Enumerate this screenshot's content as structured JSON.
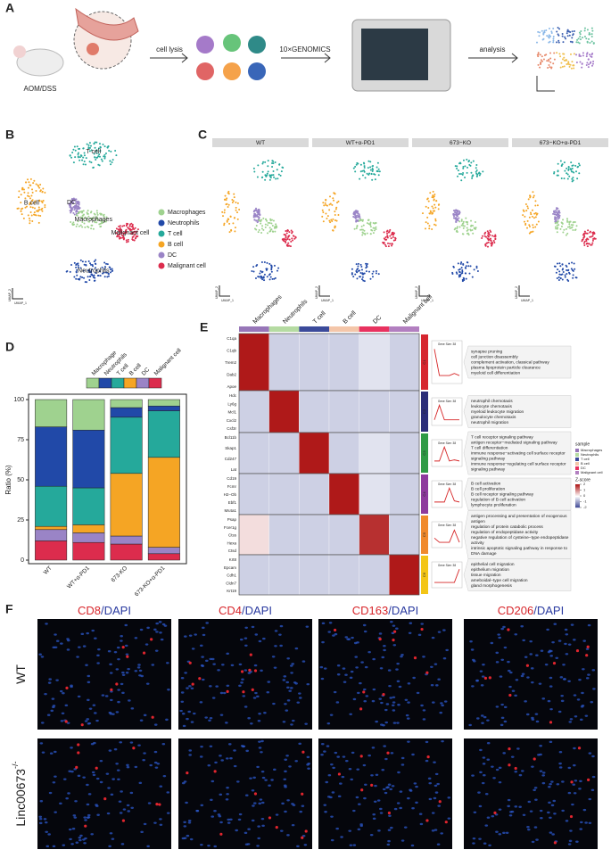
{
  "panel_a": {
    "letter": "A",
    "mouse_label": "AOM/DSS",
    "step1": "cell lysis",
    "step2": "10×GENOMICS",
    "step3": "analysis"
  },
  "panel_b": {
    "letter": "B",
    "cluster_labels": [
      "T cell",
      "B cell",
      "DC",
      "Macrophages",
      "Malignant cell",
      "Neutrophils"
    ],
    "legend": [
      {
        "name": "Macrophages",
        "color": "#9fd28f"
      },
      {
        "name": "Neutrophils",
        "color": "#2149a8"
      },
      {
        "name": "T cell",
        "color": "#25a99b"
      },
      {
        "name": "B cell",
        "color": "#f5a524"
      },
      {
        "name": "DC",
        "color": "#9a84c6"
      },
      {
        "name": "Malignant cell",
        "color": "#dc2c4d"
      }
    ],
    "xlabel": "UMAP_1",
    "ylabel": "UMAP_2"
  },
  "panel_c": {
    "letter": "C",
    "groups": [
      "WT",
      "WT+α-PD1",
      "673−KO",
      "673−KO+α-PD1"
    ],
    "xlabel": "UMAP_1",
    "ylabel": "UMAP_2"
  },
  "chart_data": {
    "type": "bar",
    "stacked": true,
    "letter": "D",
    "ylabel": "Ratio (%)",
    "categories": [
      "WT",
      "WT+α-PD1",
      "673-KO",
      "673-KO+α-PD1"
    ],
    "ylim": [
      0,
      100
    ],
    "yticks": [
      0,
      25,
      50,
      75,
      100
    ],
    "series": [
      {
        "name": "Malignant cell",
        "color": "#dc2c4d",
        "values": [
          12,
          11,
          10,
          4
        ]
      },
      {
        "name": "DC",
        "color": "#9a84c6",
        "values": [
          7,
          6,
          5,
          4
        ]
      },
      {
        "name": "B cell",
        "color": "#f5a524",
        "values": [
          2,
          5,
          39,
          56
        ]
      },
      {
        "name": "T cell",
        "color": "#25a99b",
        "values": [
          25,
          23,
          35,
          29
        ]
      },
      {
        "name": "Neutrophils",
        "color": "#2149a8",
        "values": [
          37,
          36,
          6,
          3
        ]
      },
      {
        "name": "Macrophage",
        "color": "#9fd28f",
        "values": [
          17,
          19,
          5,
          4
        ]
      }
    ]
  },
  "panel_e": {
    "letter": "E",
    "columns": [
      {
        "name": "Macrophages",
        "color": "#9776b8"
      },
      {
        "name": "Neutrophils",
        "color": "#b5dba2"
      },
      {
        "name": "T cell",
        "color": "#3b4a9a"
      },
      {
        "name": "B cell",
        "color": "#f4c6a9"
      },
      {
        "name": "DC",
        "color": "#e8325f"
      },
      {
        "name": "Malignant cell",
        "color": "#b27fc0"
      }
    ],
    "clusters": [
      {
        "id": "C1",
        "color": "#d6262f",
        "gene_size": "Gene Size: 38",
        "genes": [
          "C1qa",
          "C1qb",
          "Trem2",
          "Dab2",
          "Apoe"
        ],
        "means": [
          2,
          -0.5,
          -0.5,
          -0.5,
          -0.3,
          -0.5
        ],
        "terms": [
          "synapse pruning",
          "cell junction disassembly",
          "complement activation, classical pathway",
          "plasma lipoprotein particle clearance",
          "myeloid cell differentiation"
        ]
      },
      {
        "id": "C2",
        "color": "#2b2d78",
        "gene_size": "Gene Size: 38",
        "genes": [
          "Hdc",
          "Ly6g",
          "Mcl1",
          "Cxcl2",
          "Csf3r"
        ],
        "means": [
          -0.5,
          2,
          -0.5,
          -0.5,
          -0.5,
          -0.5
        ],
        "terms": [
          "neutrophil chemotaxis",
          "leukocyte chemotaxis",
          "myeloid leukocyte migration",
          "granulocyte chemotaxis",
          "neutrophil migration"
        ]
      },
      {
        "id": "C3",
        "color": "#2f9a45",
        "gene_size": "Gene Size: 38",
        "genes": [
          "Bcl11b",
          "Skap1",
          "Cd247",
          "Lat"
        ],
        "means": [
          -0.5,
          -0.5,
          2,
          -0.5,
          -0.3,
          -0.5
        ],
        "terms": [
          "T cell receptor signaling pathway",
          "antigen receptor−mediated signaling pathway",
          "T cell differentiation",
          "immune response−activating cell surface receptor",
          "signaling pathway",
          "immune response−regulating cell surface receptor",
          "signaling pathway"
        ]
      },
      {
        "id": "C4",
        "color": "#8e3a9d",
        "gene_size": "Gene Size: 38",
        "genes": [
          "Cd19",
          "Fcmr",
          "H2−Ob",
          "Ebf1",
          "Ms4a1"
        ],
        "means": [
          -0.5,
          -0.5,
          -0.5,
          2,
          -0.3,
          -0.5
        ],
        "terms": [
          "B cell activation",
          "B cell proliferation",
          "B cell receptor signaling pathway",
          "regulation of B cell activation",
          "lymphocyte proliferation"
        ]
      },
      {
        "id": "C5",
        "color": "#f08a2c",
        "gene_size": "Gene Size: 38",
        "genes": [
          "Psap",
          "Fcer1g",
          "Ctss",
          "Hexa",
          "Ctsd"
        ],
        "means": [
          0.3,
          -0.5,
          -0.5,
          -0.5,
          1.8,
          -0.5
        ],
        "terms": [
          "antigen processing and presentation of exogenous",
          "antigen",
          "regulation of protein catabolic process",
          "regulation of endopeptidase activity",
          "negative regulation of cysteine−type endopeptidase",
          "activity",
          "intrinsic apoptotic signaling pathway in response to",
          "DNA damage"
        ]
      },
      {
        "id": "C6",
        "color": "#f3c517",
        "gene_size": "Gene Size: 38",
        "genes": [
          "Krt8",
          "Epcam",
          "Cdh1",
          "Cldn7",
          "Krt19"
        ],
        "means": [
          -0.5,
          -0.5,
          -0.5,
          -0.5,
          -0.5,
          2
        ],
        "terms": [
          "epithelial cell migration",
          "epithelium migration",
          "tissue migration",
          "ameboidal−type cell migration",
          "gland morphogenesis"
        ]
      }
    ],
    "sample_title": "sample",
    "zscore_title": "Z-score",
    "zscore_ticks": [
      2,
      1,
      0,
      -1,
      -2
    ]
  },
  "panel_f": {
    "letter": "F",
    "columns": [
      {
        "marker": "CD8",
        "stain": "/DAPI"
      },
      {
        "marker": "CD4",
        "stain": "/DAPI"
      },
      {
        "marker": "CD163",
        "stain": "/DAPI"
      },
      {
        "marker": "CD206",
        "stain": "/DAPI"
      }
    ],
    "rows": [
      {
        "name": "WT"
      },
      {
        "name": "Linc00673",
        "sup": "-/-"
      }
    ]
  }
}
